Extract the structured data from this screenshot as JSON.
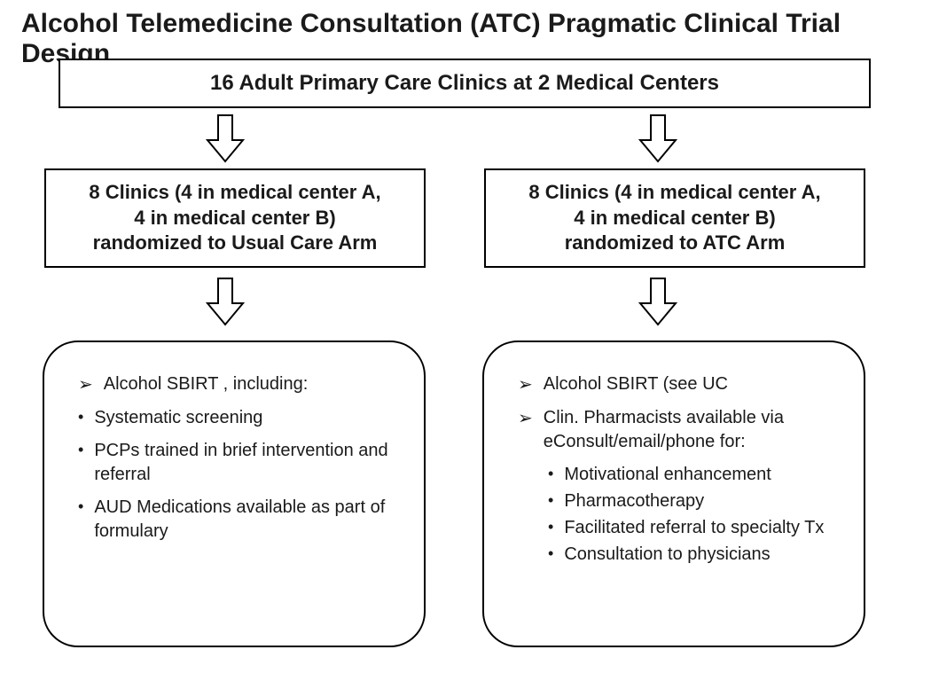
{
  "diagram": {
    "type": "flowchart",
    "title": "Alcohol Telemedicine Consultation (ATC) Pragmatic Clinical Trial Design",
    "background_color": "#ffffff",
    "text_color": "#1a1a1a",
    "border_color": "#000000",
    "title_fontsize": 30,
    "node_fontsize": 22,
    "leaf_fontsize": 20,
    "nodes": {
      "top": {
        "text": "16 Adult Primary Care Clinics at 2 Medical Centers",
        "border_radius": 0
      },
      "mid_left": {
        "line1": "8 Clinics (4 in medical center A,",
        "line2": "4 in medical center B)",
        "line3": "randomized to Usual Care Arm",
        "border_radius": 0
      },
      "mid_right": {
        "line1": "8 Clinics (4 in medical center A,",
        "line2": "4 in medical center B)",
        "line3": "randomized to ATC Arm",
        "border_radius": 0
      },
      "leaf_left": {
        "border_radius": 40,
        "items": [
          {
            "marker": "tri",
            "indent": 1,
            "text": "Alcohol SBIRT , including:"
          },
          {
            "marker": "dot",
            "indent": 1,
            "text": "Systematic screening"
          },
          {
            "marker": "dot",
            "indent": 1,
            "text": "PCPs trained in brief intervention and referral"
          },
          {
            "marker": "dot",
            "indent": 1,
            "text": "AUD Medications available as part of formulary"
          }
        ]
      },
      "leaf_right": {
        "border_radius": 40,
        "items": [
          {
            "marker": "tri",
            "indent": 1,
            "text": "Alcohol SBIRT (see UC"
          },
          {
            "marker": "tri",
            "indent": 1,
            "text": "Clin. Pharmacists available via eConsult/email/phone for:"
          },
          {
            "marker": "dot",
            "indent": 2,
            "text": "Motivational enhancement"
          },
          {
            "marker": "dot",
            "indent": 2,
            "text": "Pharmacotherapy"
          },
          {
            "marker": "dot",
            "indent": 2,
            "text": "Facilitated referral to specialty Tx"
          },
          {
            "marker": "dot",
            "indent": 2,
            "text": "Consultation to physicians"
          }
        ]
      }
    },
    "arrow": {
      "fill": "#ffffff",
      "stroke": "#000000",
      "stroke_width": 2
    },
    "edges": [
      {
        "from": "top",
        "to": "mid_left"
      },
      {
        "from": "top",
        "to": "mid_right"
      },
      {
        "from": "mid_left",
        "to": "leaf_left"
      },
      {
        "from": "mid_right",
        "to": "leaf_right"
      }
    ],
    "markers": {
      "tri": "➢",
      "dot": "•"
    }
  }
}
